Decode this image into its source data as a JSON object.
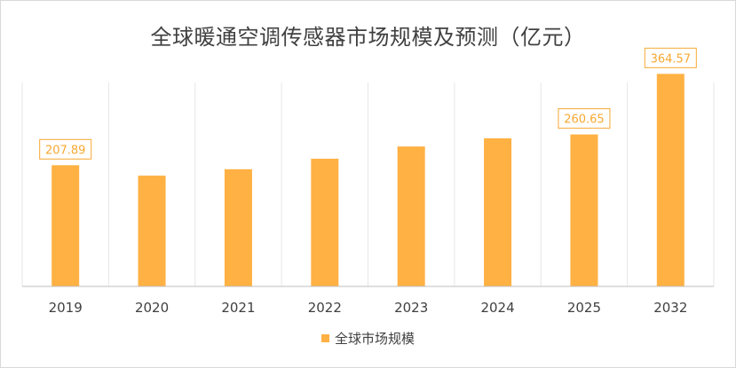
{
  "chart_data": {
    "type": "bar",
    "title": "全球暖通空调传感器市场规模及预测（亿元）",
    "categories": [
      "2019",
      "2020",
      "2021",
      "2022",
      "2023",
      "2024",
      "2025",
      "2032"
    ],
    "series": [
      {
        "name": "全球市场规模",
        "values": [
          207.89,
          190,
          201,
          219,
          240,
          254,
          260.65,
          364.57
        ],
        "data_labels": [
          "207.89",
          null,
          null,
          null,
          null,
          null,
          "260.65",
          "364.57"
        ]
      }
    ],
    "ylim": [
      0,
      400
    ],
    "grid": "vertical",
    "legend": "bottom",
    "colors": {
      "bar": "#ffb143",
      "label": "#f7a833",
      "grid": "#e6e6e6",
      "axis": "#bfbfbf"
    }
  }
}
